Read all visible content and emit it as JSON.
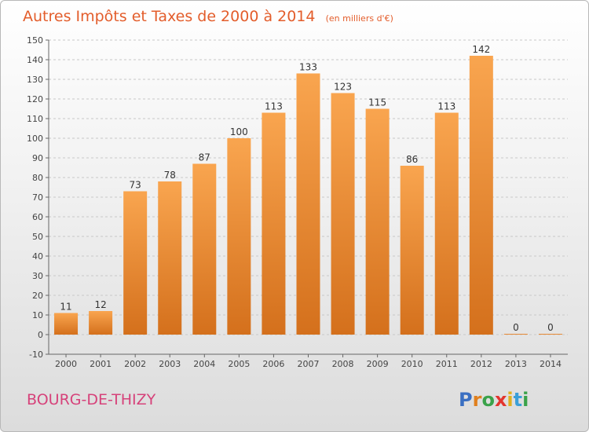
{
  "chart_data": {
    "type": "bar",
    "title": "Autres Impôts et Taxes de 2000 à 2014",
    "subtitle": "(en milliers d'€)",
    "categories": [
      "2000",
      "2001",
      "2002",
      "2003",
      "2004",
      "2005",
      "2006",
      "2007",
      "2008",
      "2009",
      "2010",
      "2011",
      "2012",
      "2013",
      "2014"
    ],
    "values": [
      11,
      12,
      73,
      78,
      87,
      100,
      113,
      133,
      123,
      115,
      86,
      113,
      142,
      0,
      0
    ],
    "ylim": [
      -10,
      150
    ],
    "yticks": [
      -10,
      0,
      10,
      20,
      30,
      40,
      50,
      60,
      70,
      80,
      90,
      100,
      110,
      120,
      130,
      140,
      150
    ],
    "grid": "horizontal-dashed",
    "bar_color_top": "#f9a54f",
    "bar_color_bottom": "#d4701c",
    "xlabel": "",
    "ylabel": ""
  },
  "footer": {
    "place": "BOURG-DE-THIZY",
    "brand": "Proxiti"
  }
}
